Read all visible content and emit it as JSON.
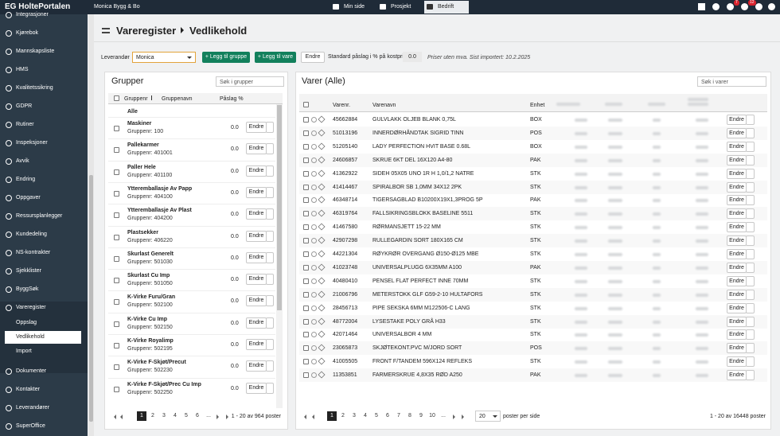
{
  "header": {
    "logo": "EG HoltePortalen",
    "company": "Monica Bygg & Bo",
    "tabs": [
      "Min side",
      "Prosjekt",
      "Bedrift"
    ],
    "badges": [
      "7",
      "12"
    ]
  },
  "sidebar": {
    "items": [
      "Integrasjoner",
      "Kjørebok",
      "Mannskapsliste",
      "HMS",
      "Kvalitetssikring",
      "GDPR",
      "Rutiner",
      "Inspeksjoner",
      "Avvik",
      "Endring",
      "Oppgaver",
      "Ressursplanlegger",
      "Kundedeling",
      "NS-kontrakter",
      "Sjekklister",
      "ByggSøk"
    ],
    "group": "Vareregister",
    "subitems": [
      "Oppslag",
      "Vedlikehold",
      "Import"
    ],
    "after": [
      "Dokumenter",
      "Kontakter",
      "Leverandører",
      "SuperOffice"
    ]
  },
  "breadcrumb": [
    "Vareregister",
    "Vedlikehold"
  ],
  "toolbar": {
    "supplier_label": "Leverandør",
    "supplier": "Monica",
    "add_group": "+ Legg til gruppe",
    "add_item": "+ Legg til vare",
    "edit": "Endre",
    "markup_label": "Standard påslag i % på kostpris",
    "markup": "0.0",
    "note": "Priser uten mva. Sist importert: 10.2.2025"
  },
  "groups": {
    "title": "Grupper",
    "search": "Søk i grupper",
    "columns": [
      "Gruppenr",
      "Gruppenavn",
      "Påslag %"
    ],
    "all": "Alle",
    "edit": "Endre",
    "rows": [
      {
        "name": "Maskiner",
        "number": "Gruppenr: 100",
        "markup": "0.0"
      },
      {
        "name": "Pallekarmer",
        "number": "Gruppenr: 401001",
        "markup": "0.0"
      },
      {
        "name": "Paller Hele",
        "number": "Gruppenr: 401100",
        "markup": "0.0"
      },
      {
        "name": "Ytteremballasje Av Papp",
        "number": "Gruppenr: 404100",
        "markup": "0.0"
      },
      {
        "name": "Ytteremballasje Av Plast",
        "number": "Gruppenr: 404200",
        "markup": "0.0"
      },
      {
        "name": "Plastsekker",
        "number": "Gruppenr: 406220",
        "markup": "0.0"
      },
      {
        "name": "Skurlast Generelt",
        "number": "Gruppenr: 501030",
        "markup": "0.0"
      },
      {
        "name": "Skurlast Cu Imp",
        "number": "Gruppenr: 501050",
        "markup": "0.0"
      },
      {
        "name": "K-Virke Furu/Gran",
        "number": "Gruppenr: 502100",
        "markup": "0.0"
      },
      {
        "name": "K-Virke Cu Imp",
        "number": "Gruppenr: 502150",
        "markup": "0.0"
      },
      {
        "name": "K-Virke Royalimp",
        "number": "Gruppenr: 502195",
        "markup": "0.0"
      },
      {
        "name": "K-Virke F-Skjøt/Precut",
        "number": "Gruppenr: 502230",
        "markup": "0.0"
      },
      {
        "name": "K-Virke F-Skjøt/Prec Cu Imp",
        "number": "Gruppenr: 502250",
        "markup": "0.0"
      }
    ],
    "pages": [
      "1",
      "2",
      "3",
      "4",
      "5",
      "6",
      "..."
    ],
    "summary": "1 - 20 av 964 poster"
  },
  "items": {
    "title": "Varer (Alle)",
    "search": "Søk i varer",
    "columns": [
      "Varenr.",
      "Varenavn",
      "Enhet"
    ],
    "edit": "Endre",
    "rows": [
      [
        "45662884",
        "GULVLAKK OLJEB BLANK 0,75L",
        "BOX"
      ],
      [
        "51013196",
        "INNERDØRHÅNDTAK SIGRID TINN",
        "POS"
      ],
      [
        "51205140",
        "LADY PERFECTION HVIT BASE 0.68L",
        "BOX"
      ],
      [
        "24606857",
        "SKRUE 6KT DEL 16X120 A4-80",
        "PAK"
      ],
      [
        "41362922",
        "SIDEH 05X05 UNO 1R H 1,0/1,2 NATRE",
        "STK"
      ],
      [
        "41414467",
        "SPIRALBOR SB 1,0MM 34X12 2PK",
        "STK"
      ],
      [
        "46348714",
        "TIGERSAGBLAD B10200X19X1,3PROG 5P",
        "PAK"
      ],
      [
        "46319764",
        "FALLSIKRINGSBLOKK BASELINE 5511",
        "STK"
      ],
      [
        "41467580",
        "RØRMANSJETT 15-22 MM",
        "STK"
      ],
      [
        "42907298",
        "RULLEGARDIN SORT 180X165 CM",
        "STK"
      ],
      [
        "44221304",
        "RØYKRØR OVERGANG Ø150-Ø125 MBE",
        "STK"
      ],
      [
        "41023748",
        "UNIVERSALPLUGG 6X35MM A100",
        "PAK"
      ],
      [
        "40480410",
        "PENSEL FLAT PERFECT INNE 70MM",
        "STK"
      ],
      [
        "21006796",
        "METERSTOKK GLF G59-2-10 HULTAFORS",
        "STK"
      ],
      [
        "28456713",
        "PIPE SEKSKA 6MM M122506-C LANG",
        "STK"
      ],
      [
        "48772004",
        "LYSESTAKE POLY GRÅ H33",
        "STK"
      ],
      [
        "42071464",
        "UNIVERSALBOR 4 MM",
        "STK"
      ],
      [
        "23065873",
        "SKJØTEKONT.PVC M/JORD SORT",
        "POS"
      ],
      [
        "41005505",
        "FRONT F/TANDEM 596X124 REFLEKS",
        "STK"
      ],
      [
        "11353851",
        "FARMERSKRUE 4,8X35 RØD A250",
        "PAK"
      ]
    ],
    "pages": [
      "1",
      "2",
      "3",
      "4",
      "5",
      "6",
      "7",
      "8",
      "9",
      "10",
      "..."
    ],
    "page_size": "20",
    "page_size_label": "poster per side",
    "summary": "1 - 20 av 16448 poster"
  }
}
